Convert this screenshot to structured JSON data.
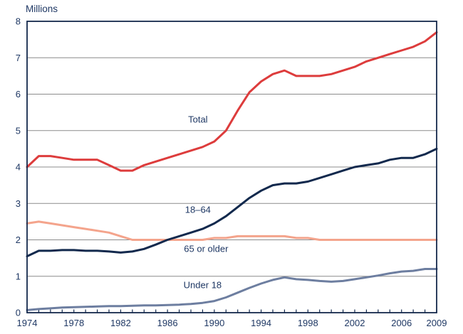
{
  "chart_data": {
    "type": "line",
    "title": "",
    "ylabel": "Millions",
    "xlabel": "",
    "xlim": [
      1974,
      2009
    ],
    "ylim": [
      0,
      8
    ],
    "grid": "horizontal",
    "legend_position": "inline-labels",
    "x": [
      1974,
      1975,
      1976,
      1977,
      1978,
      1979,
      1980,
      1981,
      1982,
      1983,
      1984,
      1985,
      1986,
      1987,
      1988,
      1989,
      1990,
      1991,
      1992,
      1993,
      1994,
      1995,
      1996,
      1997,
      1998,
      1999,
      2000,
      2001,
      2002,
      2003,
      2004,
      2005,
      2006,
      2007,
      2008,
      2009
    ],
    "series": [
      {
        "name": "Total",
        "color": "#dd3c3c",
        "values": [
          4.0,
          4.3,
          4.3,
          4.25,
          4.2,
          4.2,
          4.2,
          4.05,
          3.9,
          3.9,
          4.05,
          4.15,
          4.25,
          4.35,
          4.45,
          4.55,
          4.7,
          5.0,
          5.55,
          6.05,
          6.35,
          6.55,
          6.65,
          6.5,
          6.5,
          6.5,
          6.55,
          6.65,
          6.75,
          6.9,
          7.0,
          7.1,
          7.2,
          7.3,
          7.45,
          7.7
        ]
      },
      {
        "name": "18–64",
        "color": "#12294d",
        "values": [
          1.55,
          1.7,
          1.7,
          1.72,
          1.72,
          1.7,
          1.7,
          1.68,
          1.65,
          1.68,
          1.75,
          1.87,
          2.0,
          2.1,
          2.2,
          2.3,
          2.45,
          2.65,
          2.9,
          3.15,
          3.35,
          3.5,
          3.55,
          3.55,
          3.6,
          3.7,
          3.8,
          3.9,
          4.0,
          4.05,
          4.1,
          4.2,
          4.25,
          4.25,
          4.35,
          4.5
        ]
      },
      {
        "name": "65 or older",
        "color": "#f4a48c",
        "values": [
          2.45,
          2.5,
          2.45,
          2.4,
          2.35,
          2.3,
          2.25,
          2.2,
          2.1,
          2.0,
          2.0,
          2.0,
          2.0,
          2.0,
          2.0,
          2.0,
          2.05,
          2.05,
          2.1,
          2.1,
          2.1,
          2.1,
          2.1,
          2.05,
          2.05,
          2.0,
          2.0,
          2.0,
          2.0,
          2.0,
          2.0,
          2.0,
          2.0,
          2.0,
          2.0,
          2.0
        ]
      },
      {
        "name": "Under 18",
        "color": "#6d7ea0",
        "values": [
          0.07,
          0.1,
          0.12,
          0.14,
          0.15,
          0.16,
          0.17,
          0.18,
          0.18,
          0.19,
          0.2,
          0.2,
          0.21,
          0.22,
          0.24,
          0.27,
          0.32,
          0.42,
          0.55,
          0.68,
          0.8,
          0.9,
          0.97,
          0.92,
          0.9,
          0.87,
          0.85,
          0.87,
          0.92,
          0.97,
          1.02,
          1.08,
          1.13,
          1.15,
          1.2,
          1.2
        ]
      }
    ],
    "xtick_labels": [
      "1974",
      "1978",
      "1982",
      "1986",
      "1990",
      "1994",
      "1998",
      "2002",
      "2006",
      "2009"
    ],
    "xtick_values": [
      1974,
      1978,
      1982,
      1986,
      1990,
      1994,
      1998,
      2002,
      2006,
      2009
    ],
    "ytick_labels": [
      "0",
      "1",
      "2",
      "3",
      "4",
      "5",
      "6",
      "7",
      "8"
    ],
    "ytick_values": [
      0,
      1,
      2,
      3,
      4,
      5,
      6,
      7,
      8
    ],
    "annotations": [
      {
        "label": "Total",
        "x": 1988.6,
        "y": 5.31
      },
      {
        "label": "18–64",
        "x": 1988.6,
        "y": 2.83
      },
      {
        "label": "65 or older",
        "x": 1989.3,
        "y": 1.76
      },
      {
        "label": "Under 18",
        "x": 1989.0,
        "y": 0.76
      }
    ]
  },
  "colors": {
    "text": "#1f3864",
    "axis_border": "#14294d",
    "tick": "#14294d",
    "gridline": "#8c8c8c",
    "background": "#ffffff"
  }
}
